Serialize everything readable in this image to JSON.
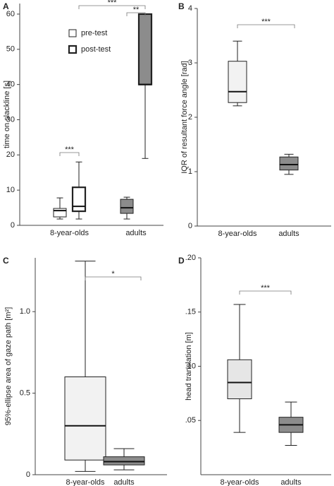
{
  "chart_data": [
    {
      "type": "box",
      "panel": "A",
      "y_label": "time on slackline [s]",
      "categories": [
        "8-year-olds",
        "adults"
      ],
      "ylim": [
        0,
        63
      ],
      "yticks": [
        0,
        10,
        20,
        30,
        40,
        50,
        60
      ],
      "box_colors": [
        "#ffffff",
        "#8c8c8c"
      ],
      "legend": "upper left",
      "series": [
        {
          "name": "pre-test",
          "linewidth": 1,
          "boxes": [
            {
              "min": 1.8,
              "q1": 2.4,
              "median": 4.2,
              "q3": 4.8,
              "max": 7.8
            },
            {
              "min": 1.8,
              "q1": 3.4,
              "median": 5,
              "q3": 7.4,
              "max": 8
            }
          ]
        },
        {
          "name": "post-test",
          "linewidth": 2.2,
          "boxes": [
            {
              "min": 1.8,
              "q1": 4,
              "median": 5.4,
              "q3": 10.8,
              "max": 18
            },
            {
              "min": 19,
              "q1": 40,
              "median": 40,
              "q3": 60,
              "max": 60
            }
          ]
        }
      ],
      "annotations": [
        "***",
        "***",
        "**"
      ]
    },
    {
      "type": "box",
      "panel": "B",
      "y_label": "IQR of resultant force angle [rad]",
      "categories": [
        "8-year-olds",
        "adults"
      ],
      "ylim": [
        0,
        4
      ],
      "yticks": [
        0,
        1,
        2,
        3,
        4
      ],
      "box_colors": [
        "#f2f2f2",
        "#8c8c8c"
      ],
      "series": [
        {
          "linewidth": 1,
          "boxes": [
            {
              "min": 2.21,
              "q1": 2.27,
              "median": 2.47,
              "q3": 3.03,
              "max": 3.4
            },
            {
              "min": 0.95,
              "q1": 1.03,
              "median": 1.13,
              "q3": 1.27,
              "max": 1.32
            }
          ]
        }
      ],
      "annotations": [
        "***"
      ]
    },
    {
      "type": "box",
      "panel": "C",
      "y_label": "95%-ellipse area of gaze path [m²]",
      "categories": [
        "8-year-olds",
        "adults"
      ],
      "ylim": [
        0,
        1.33
      ],
      "yticks": [
        0,
        0.5,
        {
          "value": 1,
          "label": "1.0"
        }
      ],
      "box_colors": [
        "#f2f2f2",
        "#8c8c8c"
      ],
      "series": [
        {
          "linewidth": 1,
          "boxes": [
            {
              "min": 0.02,
              "q1": 0.09,
              "median": 0.3,
              "q3": 0.6,
              "max": 1.31
            },
            {
              "min": 0.03,
              "q1": 0.06,
              "median": 0.08,
              "q3": 0.11,
              "max": 0.16
            }
          ]
        }
      ],
      "annotations": [
        "*"
      ]
    },
    {
      "type": "box",
      "panel": "D",
      "y_label": "head translation [m]",
      "categories": [
        "8-year-olds",
        "adults"
      ],
      "ylim": [
        0,
        0.2
      ],
      "yticks": [
        {
          "value": 0.05,
          "label": ".05"
        },
        {
          "value": 0.1,
          "label": ".10"
        },
        {
          "value": 0.15,
          "label": ".15"
        },
        {
          "value": 0.2,
          "label": ".20"
        }
      ],
      "box_colors": [
        "#e6e6e6",
        "#8c8c8c"
      ],
      "series": [
        {
          "linewidth": 1,
          "boxes": [
            {
              "min": 0.039,
              "q1": 0.07,
              "median": 0.085,
              "q3": 0.106,
              "max": 0.157
            },
            {
              "min": 0.027,
              "q1": 0.039,
              "median": 0.046,
              "q3": 0.053,
              "max": 0.067
            }
          ]
        }
      ],
      "annotations": [
        "***"
      ]
    }
  ]
}
